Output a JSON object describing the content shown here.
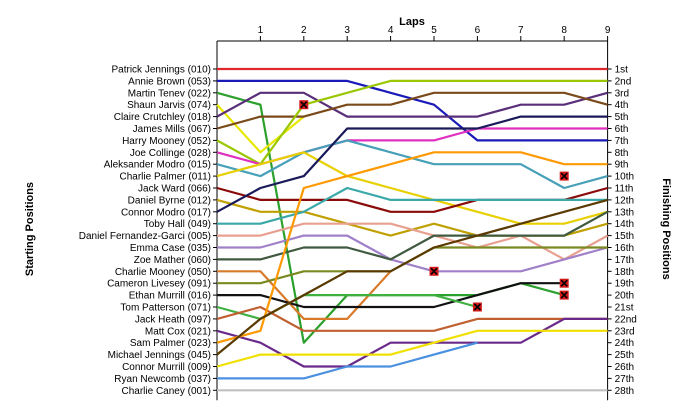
{
  "chart_data": {
    "type": "line",
    "xlabel": "Laps",
    "ylabel_left": "Starting Positions",
    "ylabel_right": "Finishing Positions",
    "x": [
      1,
      2,
      3,
      4,
      5,
      6,
      7,
      8,
      9
    ],
    "xlim": [
      0,
      9
    ],
    "ylim": [
      1,
      28
    ],
    "grid": false,
    "position_labels": [
      "1st",
      "2nd",
      "3rd",
      "4th",
      "5th",
      "6th",
      "7th",
      "8th",
      "9th",
      "10th",
      "11th",
      "12th",
      "13th",
      "14th",
      "15th",
      "16th",
      "17th",
      "18th",
      "19th",
      "20th",
      "21st",
      "22nd",
      "23rd",
      "24th",
      "25th",
      "26th",
      "27th",
      "28th"
    ],
    "starting_labels": [
      "Patrick Jennings (010)",
      "Annie Brown (053)",
      "Martin Tenev (022)",
      "Shaun Jarvis (074)",
      "Claire Crutchley (018)",
      "James Mills (067)",
      "Harry Mooney (052)",
      "Joe Collinge (028)",
      "Aleksander Modro (015)",
      "Charlie Palmer (011)",
      "Jack Ward (066)",
      "Daniel Byrne (012)",
      "Connor Modro (017)",
      "Toby Hall (049)",
      "Daniel Fernandez-Garci (005)",
      "Emma Case (035)",
      "Zoe Mather (060)",
      "Charlie Mooney (050)",
      "Cameron Livesey (091)",
      "Ethan Murrill (016)",
      "Tom Patterson (071)",
      "Jack Heath (097)",
      "Matt Cox (021)",
      "Sam Palmer (023)",
      "Michael Jennings (045)",
      "Connor Murrill (009)",
      "Ryan Newcomb (037)",
      "Charlie Caney (001)"
    ],
    "series": [
      {
        "color": "#e0282c",
        "positions": [
          1,
          1,
          1,
          1,
          1,
          1,
          1,
          1,
          1,
          1
        ]
      },
      {
        "color": "#1a1ab8",
        "positions": [
          2,
          2,
          2,
          2,
          3,
          4,
          7,
          7,
          7,
          7
        ]
      },
      {
        "color": "#2ca02c",
        "positions": [
          3,
          4,
          24,
          20,
          20,
          20,
          20,
          19,
          20
        ],
        "retired": true
      },
      {
        "color": "#e8e800",
        "positions": [
          4,
          8,
          5
        ],
        "retired": true
      },
      {
        "color": "#5a2f7a",
        "positions": [
          5,
          3,
          3,
          5,
          5,
          5,
          5,
          4,
          4,
          3
        ]
      },
      {
        "color": "#7a4a1a",
        "positions": [
          6,
          5,
          5,
          4,
          4,
          3,
          3,
          3,
          3,
          4
        ]
      },
      {
        "color": "#9ac800",
        "positions": [
          7,
          9,
          4,
          3,
          2,
          2,
          2,
          2,
          2,
          2
        ]
      },
      {
        "color": "#e030c0",
        "positions": [
          8,
          9,
          8,
          7,
          7,
          7,
          6,
          6,
          6,
          6
        ]
      },
      {
        "color": "#46a0b8",
        "positions": [
          9,
          10,
          8,
          7,
          8,
          9,
          9,
          9,
          11,
          10
        ]
      },
      {
        "color": "#e8d000",
        "positions": [
          10,
          9,
          8,
          10,
          11,
          12,
          13,
          14,
          14,
          13
        ]
      },
      {
        "color": "#8a0a0a",
        "positions": [
          11,
          12,
          12,
          12,
          13,
          13,
          12,
          12,
          12,
          11
        ]
      },
      {
        "color": "#c0a000",
        "positions": [
          12,
          13,
          13,
          14,
          15,
          14,
          15,
          15,
          15,
          14
        ]
      },
      {
        "color": "#1a1a5a",
        "positions": [
          13,
          11,
          10,
          6,
          6,
          6,
          6,
          5,
          5,
          5
        ]
      },
      {
        "color": "#3aa8a8",
        "positions": [
          14,
          14,
          13,
          11,
          12,
          12,
          12,
          12,
          12,
          12
        ]
      },
      {
        "color": "#e8a090",
        "positions": [
          15,
          15,
          14,
          14,
          14,
          15,
          16,
          15,
          17,
          15
        ]
      },
      {
        "color": "#a080c8",
        "positions": [
          16,
          16,
          15,
          15,
          17,
          18,
          18,
          18,
          17,
          16
        ]
      },
      {
        "color": "#405a40",
        "positions": [
          17,
          17,
          16,
          16,
          17,
          15,
          15,
          15,
          15,
          13
        ]
      },
      {
        "color": "#d87a2a",
        "positions": [
          18,
          18,
          22,
          22,
          18
        ],
        "retired": true
      },
      {
        "color": "#7a8a20",
        "positions": [
          19,
          19,
          18,
          18,
          18,
          16,
          16,
          16,
          16,
          16
        ]
      },
      {
        "color": "#111111",
        "positions": [
          20,
          20,
          21,
          21,
          21,
          21,
          20,
          19,
          19
        ],
        "retired": true
      },
      {
        "color": "#40b040",
        "positions": [
          21,
          22,
          20,
          20,
          20,
          20,
          21
        ],
        "retired": true
      },
      {
        "color": "#c06030",
        "positions": [
          22,
          21,
          23,
          23,
          23,
          23,
          22,
          22,
          22,
          22
        ]
      },
      {
        "color": "#6a2a8a",
        "positions": [
          23,
          24,
          26,
          26,
          24,
          24,
          24,
          24,
          22,
          22
        ]
      },
      {
        "color": "#ff9900",
        "positions": [
          24,
          23,
          11,
          10,
          9,
          8,
          8,
          8,
          9,
          9
        ]
      },
      {
        "color": "#5a3a00",
        "positions": [
          25,
          22,
          20,
          18,
          18,
          16,
          15,
          14,
          13,
          12
        ]
      },
      {
        "color": "#f0e000",
        "positions": [
          26,
          25,
          25,
          25,
          25,
          24,
          23,
          23,
          23,
          23
        ]
      },
      {
        "color": "#4a90e0",
        "positions": [
          27,
          27,
          27,
          26,
          26,
          25,
          24
        ],
        "retired": false
      },
      {
        "color": "#c0c0c0",
        "positions": [
          28,
          28,
          28,
          28,
          28,
          28,
          28,
          28,
          28,
          28
        ]
      }
    ],
    "retired_markers": [
      {
        "lap": 2,
        "position": 4
      },
      {
        "lap": 5,
        "position": 18
      },
      {
        "lap": 6,
        "position": 21
      },
      {
        "lap": 8,
        "position": 10
      },
      {
        "lap": 8,
        "position": 19
      },
      {
        "lap": 8,
        "position": 20
      }
    ]
  }
}
